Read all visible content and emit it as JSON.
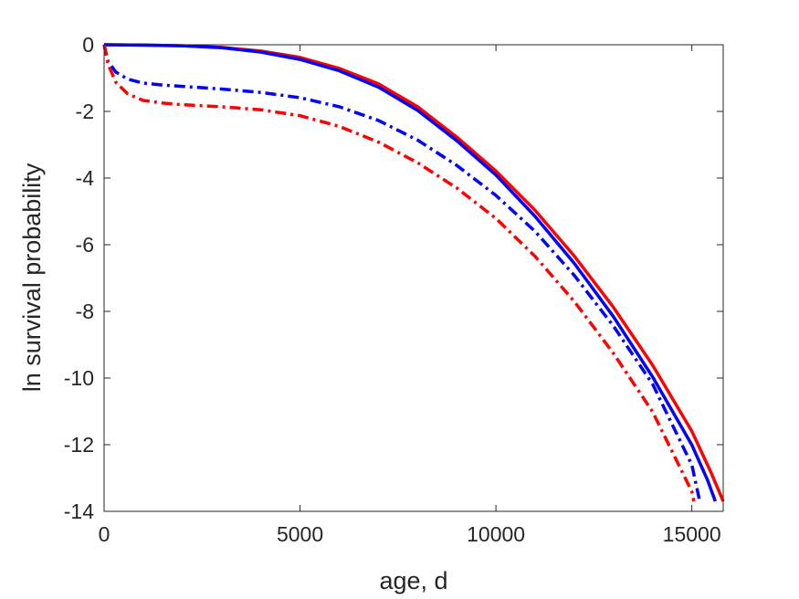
{
  "chart_data": {
    "type": "line",
    "title": "",
    "xlabel": "age, d",
    "ylabel": "ln survival probability",
    "xlim": [
      0,
      15800
    ],
    "ylim": [
      -14,
      0
    ],
    "xticks": [
      0,
      5000,
      10000,
      15000
    ],
    "yticks": [
      0,
      -2,
      -4,
      -6,
      -8,
      -10,
      -12,
      -14
    ],
    "grid": false,
    "legend": "none",
    "series": [
      {
        "color": "#ff0000",
        "style": "solid",
        "x": [
          0,
          1000,
          2000,
          3000,
          4000,
          5000,
          6000,
          7000,
          8000,
          9000,
          10000,
          11000,
          12000,
          13000,
          14000,
          15000,
          15500,
          15800
        ],
        "y": [
          0,
          -0.01,
          -0.03,
          -0.08,
          -0.19,
          -0.38,
          -0.71,
          -1.17,
          -1.86,
          -2.77,
          -3.79,
          -4.97,
          -6.34,
          -7.88,
          -9.62,
          -11.6,
          -12.86,
          -13.7
        ]
      },
      {
        "color": "#0000ff",
        "style": "solid",
        "x": [
          0,
          1000,
          2000,
          3000,
          4000,
          5000,
          6000,
          7000,
          8000,
          9000,
          10000,
          11000,
          12000,
          13000,
          14000,
          15000,
          15400,
          15600
        ],
        "y": [
          0,
          -0.01,
          -0.03,
          -0.09,
          -0.22,
          -0.44,
          -0.78,
          -1.27,
          -1.97,
          -2.88,
          -3.91,
          -5.15,
          -6.56,
          -8.16,
          -9.97,
          -12.01,
          -13.06,
          -13.7
        ]
      },
      {
        "color": "#0000ff",
        "style": "dashdot",
        "x": [
          0,
          100,
          300,
          600,
          1000,
          1500,
          2000,
          3000,
          4000,
          5000,
          6000,
          7000,
          8000,
          9000,
          10000,
          11000,
          12000,
          13000,
          14000,
          15000,
          15200
        ],
        "y": [
          0,
          -0.5,
          -0.82,
          -1.03,
          -1.15,
          -1.21,
          -1.25,
          -1.33,
          -1.43,
          -1.59,
          -1.86,
          -2.27,
          -2.86,
          -3.62,
          -4.52,
          -5.6,
          -6.92,
          -8.44,
          -10.19,
          -12.61,
          -13.7
        ]
      },
      {
        "color": "#ff0000",
        "style": "dashdot",
        "x": [
          0,
          100,
          300,
          600,
          1000,
          1500,
          2000,
          3000,
          4000,
          5000,
          6000,
          7000,
          8000,
          9000,
          10000,
          11000,
          12000,
          13000,
          14000,
          15000,
          15050
        ],
        "y": [
          0,
          -0.58,
          -1.13,
          -1.47,
          -1.67,
          -1.75,
          -1.8,
          -1.86,
          -1.95,
          -2.13,
          -2.45,
          -2.92,
          -3.54,
          -4.3,
          -5.21,
          -6.35,
          -7.7,
          -9.26,
          -11.02,
          -13.41,
          -13.7
        ]
      }
    ]
  }
}
